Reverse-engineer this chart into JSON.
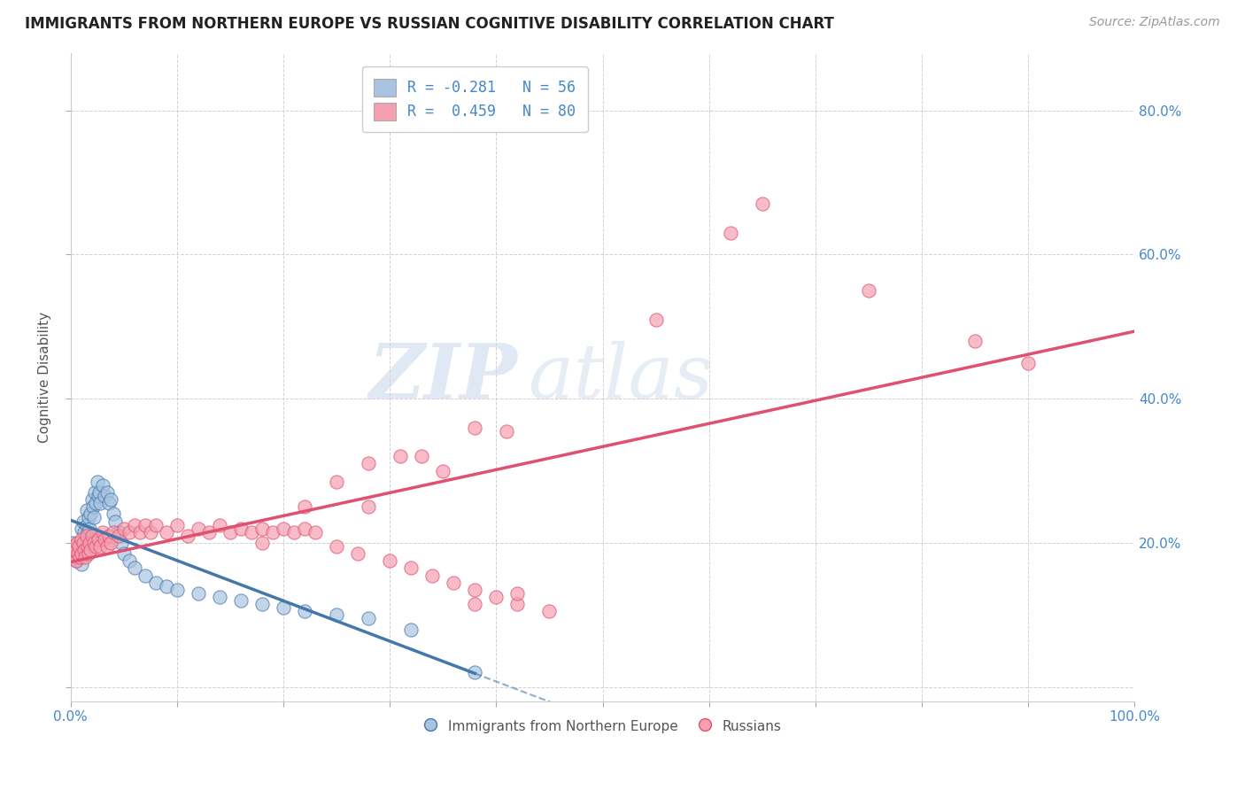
{
  "title": "IMMIGRANTS FROM NORTHERN EUROPE VS RUSSIAN COGNITIVE DISABILITY CORRELATION CHART",
  "source": "Source: ZipAtlas.com",
  "xlabel": "",
  "ylabel": "Cognitive Disability",
  "legend_label1": "Immigrants from Northern Europe",
  "legend_label2": "Russians",
  "r1": -0.281,
  "n1": 56,
  "r2": 0.459,
  "n2": 80,
  "color1": "#a8c4e0",
  "color2": "#f4a0b0",
  "line_color1": "#4477aa",
  "line_color2": "#e05070",
  "watermark_zip": "ZIP",
  "watermark_atlas": "atlas",
  "background_color": "#ffffff",
  "grid_color": "#cccccc",
  "xlim": [
    0.0,
    1.0
  ],
  "ylim": [
    -0.02,
    0.88
  ],
  "xticks": [
    0.0,
    0.1,
    0.2,
    0.3,
    0.4,
    0.5,
    0.6,
    0.7,
    0.8,
    0.9,
    1.0
  ],
  "xticklabels": [
    "0.0%",
    "",
    "",
    "",
    "",
    "",
    "",
    "",
    "",
    "",
    "100.0%"
  ],
  "yticks_right": [
    0.2,
    0.4,
    0.6,
    0.8
  ],
  "yticklabels_right": [
    "20.0%",
    "40.0%",
    "60.0%",
    "80.0%"
  ],
  "scatter1_x": [
    0.002,
    0.003,
    0.004,
    0.005,
    0.006,
    0.007,
    0.008,
    0.009,
    0.01,
    0.01,
    0.01,
    0.012,
    0.013,
    0.014,
    0.015,
    0.015,
    0.016,
    0.017,
    0.018,
    0.018,
    0.019,
    0.02,
    0.021,
    0.022,
    0.023,
    0.024,
    0.025,
    0.026,
    0.027,
    0.028,
    0.03,
    0.032,
    0.034,
    0.036,
    0.038,
    0.04,
    0.042,
    0.045,
    0.048,
    0.05,
    0.055,
    0.06,
    0.07,
    0.08,
    0.09,
    0.1,
    0.12,
    0.14,
    0.16,
    0.18,
    0.2,
    0.22,
    0.25,
    0.28,
    0.32,
    0.38
  ],
  "scatter1_y": [
    0.2,
    0.185,
    0.19,
    0.175,
    0.195,
    0.18,
    0.2,
    0.185,
    0.22,
    0.19,
    0.17,
    0.23,
    0.215,
    0.2,
    0.245,
    0.225,
    0.215,
    0.235,
    0.22,
    0.205,
    0.24,
    0.26,
    0.25,
    0.235,
    0.27,
    0.255,
    0.285,
    0.265,
    0.27,
    0.255,
    0.28,
    0.265,
    0.27,
    0.255,
    0.26,
    0.24,
    0.23,
    0.215,
    0.2,
    0.185,
    0.175,
    0.165,
    0.155,
    0.145,
    0.14,
    0.135,
    0.13,
    0.125,
    0.12,
    0.115,
    0.11,
    0.105,
    0.1,
    0.095,
    0.08,
    0.02
  ],
  "scatter2_x": [
    0.002,
    0.003,
    0.004,
    0.005,
    0.006,
    0.007,
    0.008,
    0.009,
    0.01,
    0.01,
    0.012,
    0.013,
    0.014,
    0.015,
    0.016,
    0.017,
    0.018,
    0.019,
    0.02,
    0.022,
    0.024,
    0.026,
    0.028,
    0.03,
    0.032,
    0.034,
    0.036,
    0.038,
    0.04,
    0.045,
    0.05,
    0.055,
    0.06,
    0.065,
    0.07,
    0.075,
    0.08,
    0.09,
    0.1,
    0.11,
    0.12,
    0.13,
    0.14,
    0.15,
    0.16,
    0.17,
    0.18,
    0.19,
    0.2,
    0.21,
    0.22,
    0.23,
    0.25,
    0.27,
    0.3,
    0.32,
    0.34,
    0.36,
    0.38,
    0.4,
    0.42,
    0.45,
    0.38,
    0.31,
    0.28,
    0.22,
    0.18,
    0.25,
    0.33,
    0.41,
    0.35,
    0.28,
    0.42,
    0.38,
    0.65,
    0.62,
    0.9,
    0.85,
    0.75,
    0.55
  ],
  "scatter2_y": [
    0.195,
    0.18,
    0.19,
    0.175,
    0.2,
    0.185,
    0.195,
    0.18,
    0.205,
    0.185,
    0.2,
    0.19,
    0.18,
    0.21,
    0.195,
    0.185,
    0.2,
    0.19,
    0.21,
    0.2,
    0.195,
    0.205,
    0.195,
    0.215,
    0.205,
    0.195,
    0.21,
    0.2,
    0.215,
    0.21,
    0.22,
    0.215,
    0.225,
    0.215,
    0.225,
    0.215,
    0.225,
    0.215,
    0.225,
    0.21,
    0.22,
    0.215,
    0.225,
    0.215,
    0.22,
    0.215,
    0.22,
    0.215,
    0.22,
    0.215,
    0.22,
    0.215,
    0.195,
    0.185,
    0.175,
    0.165,
    0.155,
    0.145,
    0.135,
    0.125,
    0.115,
    0.105,
    0.36,
    0.32,
    0.31,
    0.25,
    0.2,
    0.285,
    0.32,
    0.355,
    0.3,
    0.25,
    0.13,
    0.115,
    0.67,
    0.63,
    0.45,
    0.48,
    0.55,
    0.51
  ]
}
